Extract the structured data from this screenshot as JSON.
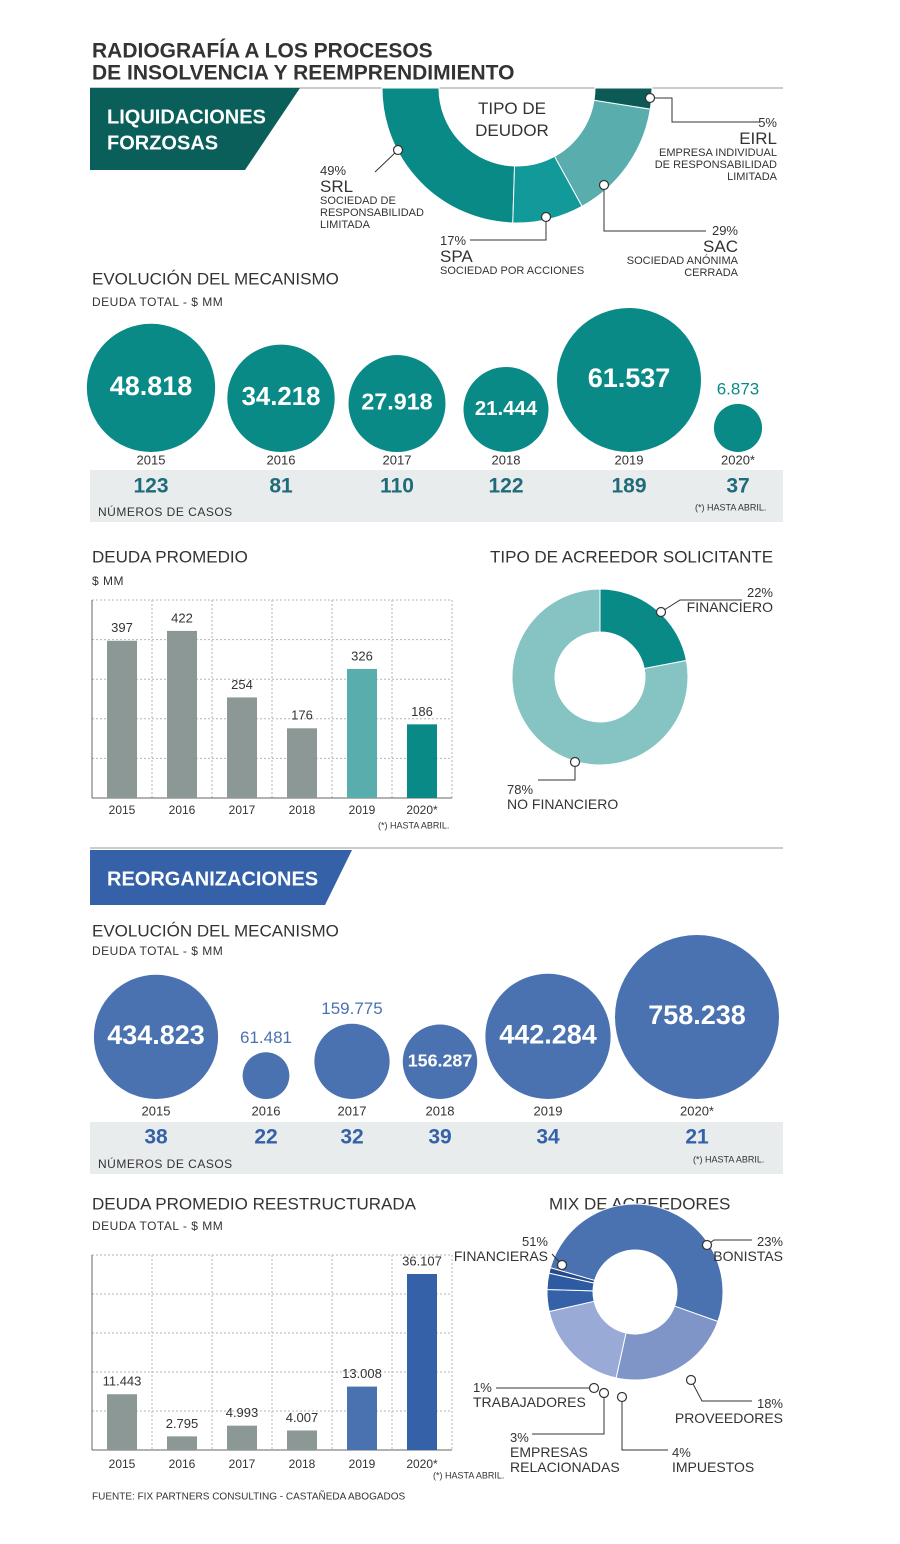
{
  "header": {
    "title": [
      "RADIOGRAFÍA A LOS PROCESOS",
      "DE INSOLVENCIA Y REEMPRENDIMIENTO"
    ]
  },
  "sections": [
    {
      "title": [
        "LIQUIDACIONES",
        "FORZOSAS"
      ]
    },
    {
      "title": "REORGANIZACIONES"
    }
  ],
  "chart_data": [
    {
      "type": "halfdonut",
      "center_label": "TIPO DE DEUDOR",
      "categories": [
        "SRL",
        "SPA",
        "SAC",
        "EIRL"
      ],
      "descriptions": [
        "SOCIEDAD DE RESPONSABILIDAD LIMITADA",
        "SOCIEDAD POR ACCIONES",
        "SOCIEDAD ANÓNIMA CERRADA",
        "EMPRESA INDIVIDUAL DE RESPONSABILIDAD LIMITADA"
      ],
      "values": [
        49,
        17,
        29,
        5
      ],
      "value_labels": [
        "49%",
        "17%",
        "29%",
        "5%"
      ],
      "colors": [
        "#0a8a87",
        "#12999a",
        "#5aadad",
        "#0b5a56"
      ]
    },
    {
      "type": "bubble",
      "title": "EVOLUCIÓN DEL MECANISMO",
      "subtitle": "DEUDA TOTAL - $ MM",
      "categories": [
        "2015",
        "2016",
        "2017",
        "2018",
        "2019",
        "2020*"
      ],
      "values": [
        48818,
        34218,
        27918,
        21444,
        61537,
        6873
      ],
      "value_labels": [
        "48.818",
        "34.218",
        "27.918",
        "21.444",
        "61.537",
        "6.873"
      ],
      "color": "#0a8a87",
      "cases_label": "NÚMEROS DE CASOS",
      "cases": [
        123,
        81,
        110,
        122,
        189,
        37
      ],
      "cases_color": "#1f6b7a",
      "note": "(*) HASTA ABRIL."
    },
    {
      "type": "bar",
      "title": "DEUDA PROMEDIO",
      "subtitle": "$ MM",
      "categories": [
        "2015",
        "2016",
        "2017",
        "2018",
        "2019",
        "2020*"
      ],
      "values": [
        397,
        422,
        254,
        176,
        326,
        186
      ],
      "colors": [
        "#8c9896",
        "#8c9896",
        "#8c9896",
        "#8c9896",
        "#5aadad",
        "#0a8a87"
      ],
      "ylim": [
        0,
        500
      ],
      "yticks": [
        0,
        100,
        200,
        300,
        400,
        500
      ],
      "grid": true,
      "note": "(*) HASTA ABRIL."
    },
    {
      "type": "donut",
      "title": "TIPO DE ACREEDOR SOLICITANTE",
      "categories": [
        "FINANCIERO",
        "NO FINANCIERO"
      ],
      "values": [
        22,
        78
      ],
      "value_labels": [
        "22%",
        "78%"
      ],
      "colors": [
        "#0a8a87",
        "#86c3c3"
      ]
    },
    {
      "type": "bubble",
      "title": "EVOLUCIÓN DEL MECANISMO",
      "subtitle": "DEUDA TOTAL - $ MM",
      "categories": [
        "2015",
        "2016",
        "2017",
        "2018",
        "2019",
        "2020*"
      ],
      "values": [
        434823,
        61481,
        159775,
        156287,
        442284,
        758238
      ],
      "value_labels": [
        "434.823",
        "61.481",
        "159.775",
        "156.287",
        "442.284",
        "758.238"
      ],
      "color": "#4a72b0",
      "cases_label": "NÚMEROS DE CASOS",
      "cases": [
        38,
        22,
        32,
        39,
        34,
        21
      ],
      "cases_color": "#3461a8",
      "note": "(*) HASTA ABRIL."
    },
    {
      "type": "bar",
      "title": "DEUDA PROMEDIO REESTRUCTURADA",
      "subtitle": "DEUDA TOTAL - $ MM",
      "categories": [
        "2015",
        "2016",
        "2017",
        "2018",
        "2019",
        "2020*"
      ],
      "values": [
        11443,
        2795,
        4993,
        4007,
        13008,
        36107
      ],
      "value_labels": [
        "11.443",
        "2.795",
        "4.993",
        "4.007",
        "13.008",
        "36.107"
      ],
      "colors": [
        "#8c9896",
        "#8c9896",
        "#8c9896",
        "#8c9896",
        "#4a72b0",
        "#3461a8"
      ],
      "ylim": [
        0,
        40000
      ],
      "yticks": [
        0,
        8000,
        16000,
        24000,
        32000,
        40000
      ],
      "grid": true,
      "note": "(*) HASTA ABRIL."
    },
    {
      "type": "donut",
      "title": "MIX DE ACREEDORES",
      "categories": [
        "FINANCIERAS",
        "BONISTAS",
        "PROVEEDORES",
        "IMPUESTOS",
        "EMPRESAS RELACIONADAS",
        "TRABAJADORES"
      ],
      "values": [
        51,
        23,
        18,
        4,
        3,
        1
      ],
      "value_labels": [
        "51%",
        "23%",
        "18%",
        "4%",
        "3%",
        "1%"
      ],
      "colors": [
        "#4a72b0",
        "#7f95c8",
        "#9aaad6",
        "#3461a8",
        "#2d5aa0",
        "#244b8a"
      ]
    }
  ],
  "footer": {
    "source": "FUENTE: FIX PARTNERS CONSULTING - CASTAÑEDA ABOGADOS"
  }
}
